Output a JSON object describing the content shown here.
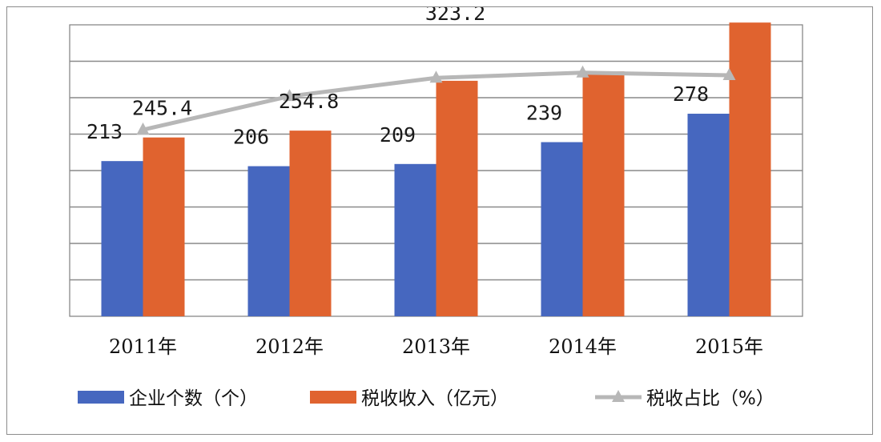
{
  "chart_data": {
    "type": "bar",
    "categories": [
      "2011年",
      "2012年",
      "2013年",
      "2014年",
      "2015年"
    ],
    "series": [
      {
        "name": "企业个数（个）",
        "kind": "bar",
        "color": "#4667bf",
        "values": [
          213,
          206,
          209,
          239,
          278
        ],
        "labels": [
          "213",
          "206",
          "209",
          "239",
          "278"
        ]
      },
      {
        "name": "税收收入（亿元）",
        "kind": "bar",
        "color": "#e0632f",
        "values": [
          245.4,
          254.8,
          323.2,
          336.1,
          403.1
        ],
        "labels": [
          "245.4",
          "254.8",
          "323.2",
          "336.1",
          "403.1"
        ]
      },
      {
        "name": "税收占比（%）",
        "kind": "line",
        "color": "#b7b7b7",
        "values": [
          64.0,
          75.5,
          81.8,
          83.6,
          82.7
        ]
      }
    ],
    "ylim_bars": [
      0,
      400
    ],
    "ylim_line": [
      0,
      100
    ],
    "grid": true,
    "legend_position": "bottom"
  }
}
